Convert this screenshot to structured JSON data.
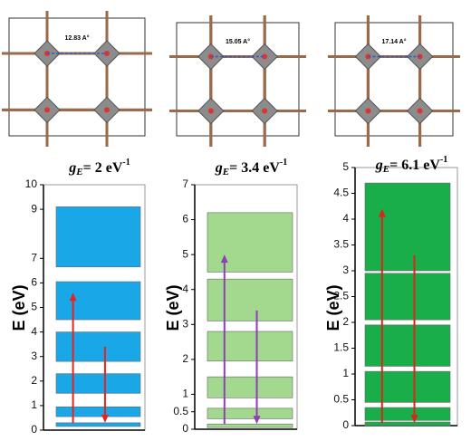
{
  "structures": [
    {
      "label": "12.83 A°"
    },
    {
      "label": "15.05 A°"
    },
    {
      "label": "17.14 A°"
    }
  ],
  "chart_data": [
    {
      "type": "band",
      "title": {
        "symbol": "g",
        "subscript": "E",
        "text": "= 2 eV",
        "superscript": "-1"
      },
      "ylabel": "E (eV)",
      "ylim": [
        0,
        10
      ],
      "yticks": [
        0,
        1,
        2,
        3,
        4,
        5,
        6,
        7,
        9,
        10
      ],
      "color": "#1aa7e8",
      "bands": [
        [
          0.15,
          0.3
        ],
        [
          0.55,
          0.95
        ],
        [
          1.5,
          2.3
        ],
        [
          2.8,
          4.0
        ],
        [
          4.5,
          6.05
        ],
        [
          6.65,
          9.1
        ]
      ],
      "arrows": [
        {
          "from": 0.3,
          "to": 5.6,
          "color": "#e8231f"
        },
        {
          "from": 3.4,
          "to": 0.3,
          "color": "#e8231f"
        }
      ]
    },
    {
      "type": "band",
      "title": {
        "symbol": "g",
        "subscript": "E",
        "text": "= 3.4 eV",
        "superscript": "-1"
      },
      "ylabel": "E (eV)",
      "ylim": [
        0,
        7
      ],
      "yticks": [
        0,
        0.5,
        1,
        2,
        3,
        4,
        5,
        6,
        7
      ],
      "color": "#a3d98f",
      "bands": [
        [
          0.05,
          0.15
        ],
        [
          0.3,
          0.6
        ],
        [
          0.9,
          1.5
        ],
        [
          1.95,
          2.8
        ],
        [
          3.1,
          4.3
        ],
        [
          4.5,
          6.2
        ]
      ],
      "arrows": [
        {
          "from": 0.15,
          "to": 5.0,
          "color": "#8e3fb5"
        },
        {
          "from": 3.4,
          "to": 0.15,
          "color": "#8e3fb5"
        }
      ]
    },
    {
      "type": "band",
      "title": {
        "symbol": "g",
        "subscript": "E",
        "text": "= 6.1 eV",
        "superscript": "-1"
      },
      "ylabel": "E (eV)",
      "ylim": [
        0,
        5
      ],
      "yticks": [
        0,
        0.5,
        1,
        1.5,
        2,
        2.5,
        3,
        3.5,
        4,
        4.5,
        5
      ],
      "color": "#1aae4a",
      "bands": [
        [
          0,
          0.07
        ],
        [
          0.1,
          0.35
        ],
        [
          0.45,
          1.05
        ],
        [
          1.15,
          1.95
        ],
        [
          2.05,
          2.95
        ],
        [
          3.0,
          4.7
        ]
      ],
      "arrows": [
        {
          "from": 0.05,
          "to": 4.2,
          "color": "#d9261c"
        },
        {
          "from": 3.3,
          "to": 0.05,
          "color": "#d9261c"
        }
      ]
    }
  ]
}
